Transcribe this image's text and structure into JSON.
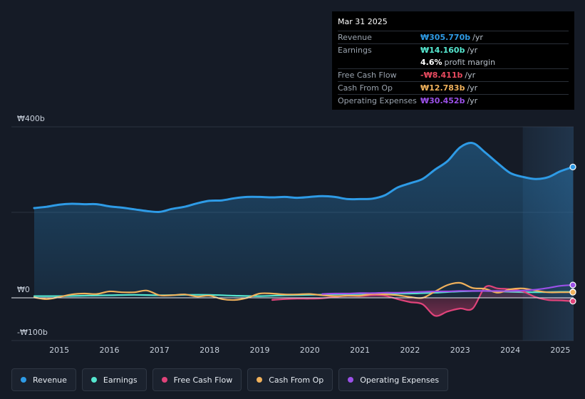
{
  "tooltip": {
    "date": "Mar 31 2025",
    "rows": [
      {
        "label": "Revenue",
        "value": "₩305.770b",
        "unit": "/yr",
        "color": "#2e9be6"
      },
      {
        "label": "Earnings",
        "value": "₩14.160b",
        "unit": "/yr",
        "color": "#55e6cf"
      },
      {
        "label": "",
        "value": "4.6%",
        "unit": "profit margin",
        "color": "#ffffff"
      },
      {
        "label": "Free Cash Flow",
        "value": "-₩8.411b",
        "unit": "/yr",
        "color": "#e84a5f"
      },
      {
        "label": "Cash From Op",
        "value": "₩12.783b",
        "unit": "/yr",
        "color": "#f0b15b"
      },
      {
        "label": "Operating Expenses",
        "value": "₩30.452b",
        "unit": "/yr",
        "color": "#9b50e8"
      }
    ]
  },
  "chart_data": {
    "type": "line",
    "y_unit_labels": {
      "top": "₩400b",
      "zero": "₩0",
      "bottom": "-₩100b"
    },
    "ylim": [
      -100,
      400
    ],
    "x_ticks": [
      "2015",
      "2016",
      "2017",
      "2018",
      "2019",
      "2020",
      "2021",
      "2022",
      "2023",
      "2024",
      "2025"
    ],
    "xlim": [
      2014.5,
      2025.25
    ],
    "forecast_shade_start": 2024.25,
    "series": [
      {
        "name": "Revenue",
        "color": "#2e9be6",
        "filled": true,
        "points": [
          [
            2014.5,
            210
          ],
          [
            2014.75,
            213
          ],
          [
            2015,
            218
          ],
          [
            2015.25,
            220
          ],
          [
            2015.5,
            219
          ],
          [
            2015.75,
            219
          ],
          [
            2016,
            214
          ],
          [
            2016.25,
            211
          ],
          [
            2016.5,
            207
          ],
          [
            2016.75,
            203
          ],
          [
            2017,
            201
          ],
          [
            2017.25,
            208
          ],
          [
            2017.5,
            213
          ],
          [
            2017.75,
            221
          ],
          [
            2018,
            227
          ],
          [
            2018.25,
            228
          ],
          [
            2018.5,
            233
          ],
          [
            2018.75,
            236
          ],
          [
            2019,
            236
          ],
          [
            2019.25,
            235
          ],
          [
            2019.5,
            236
          ],
          [
            2019.75,
            234
          ],
          [
            2020,
            236
          ],
          [
            2020.25,
            238
          ],
          [
            2020.5,
            236
          ],
          [
            2020.75,
            231
          ],
          [
            2021,
            231
          ],
          [
            2021.25,
            232
          ],
          [
            2021.5,
            240
          ],
          [
            2021.75,
            258
          ],
          [
            2022,
            268
          ],
          [
            2022.25,
            278
          ],
          [
            2022.5,
            300
          ],
          [
            2022.75,
            320
          ],
          [
            2023,
            352
          ],
          [
            2023.25,
            362
          ],
          [
            2023.5,
            340
          ],
          [
            2023.75,
            315
          ],
          [
            2024,
            292
          ],
          [
            2024.25,
            283
          ],
          [
            2024.5,
            278
          ],
          [
            2024.75,
            282
          ],
          [
            2025,
            296
          ],
          [
            2025.25,
            306
          ]
        ]
      },
      {
        "name": "Earnings",
        "color": "#55e6cf",
        "filled": false,
        "points": [
          [
            2014.5,
            4
          ],
          [
            2015,
            4
          ],
          [
            2015.5,
            5
          ],
          [
            2016,
            6
          ],
          [
            2016.5,
            7
          ],
          [
            2017,
            6
          ],
          [
            2017.5,
            7
          ],
          [
            2018,
            7
          ],
          [
            2018.5,
            5
          ],
          [
            2019,
            4
          ],
          [
            2019.5,
            6
          ],
          [
            2020,
            7
          ],
          [
            2020.5,
            8
          ],
          [
            2021,
            9
          ],
          [
            2021.5,
            10
          ],
          [
            2022,
            10
          ],
          [
            2022.5,
            12
          ],
          [
            2023,
            15
          ],
          [
            2023.5,
            16
          ],
          [
            2024,
            14
          ],
          [
            2024.5,
            13
          ],
          [
            2025,
            14
          ],
          [
            2025.25,
            14
          ]
        ]
      },
      {
        "name": "Free Cash Flow",
        "color": "#e0437a",
        "filled": false,
        "points": [
          [
            2019.25,
            -5
          ],
          [
            2019.5,
            -3
          ],
          [
            2019.75,
            -2
          ],
          [
            2020,
            -2
          ],
          [
            2020.25,
            -1
          ],
          [
            2020.5,
            2
          ],
          [
            2020.75,
            5
          ],
          [
            2021,
            4
          ],
          [
            2021.25,
            6
          ],
          [
            2021.5,
            5
          ],
          [
            2021.75,
            -3
          ],
          [
            2022,
            -10
          ],
          [
            2022.25,
            -15
          ],
          [
            2022.5,
            -42
          ],
          [
            2022.75,
            -32
          ],
          [
            2023,
            -25
          ],
          [
            2023.25,
            -25
          ],
          [
            2023.5,
            25
          ],
          [
            2023.75,
            22
          ],
          [
            2024,
            20
          ],
          [
            2024.25,
            15
          ],
          [
            2024.5,
            2
          ],
          [
            2024.75,
            -5
          ],
          [
            2025,
            -6
          ],
          [
            2025.25,
            -8
          ]
        ]
      },
      {
        "name": "Cash From Op",
        "color": "#f0b15b",
        "filled": false,
        "points": [
          [
            2014.5,
            1
          ],
          [
            2014.75,
            -3
          ],
          [
            2015,
            2
          ],
          [
            2015.25,
            8
          ],
          [
            2015.5,
            10
          ],
          [
            2015.75,
            9
          ],
          [
            2016,
            15
          ],
          [
            2016.25,
            13
          ],
          [
            2016.5,
            13
          ],
          [
            2016.75,
            17
          ],
          [
            2017,
            6
          ],
          [
            2017.25,
            6
          ],
          [
            2017.5,
            8
          ],
          [
            2017.75,
            3
          ],
          [
            2018,
            5
          ],
          [
            2018.25,
            -3
          ],
          [
            2018.5,
            -5
          ],
          [
            2018.75,
            0
          ],
          [
            2019,
            10
          ],
          [
            2019.25,
            10
          ],
          [
            2019.5,
            8
          ],
          [
            2019.75,
            8
          ],
          [
            2020,
            9
          ],
          [
            2020.25,
            6
          ],
          [
            2020.5,
            4
          ],
          [
            2020.75,
            5
          ],
          [
            2021,
            5
          ],
          [
            2021.25,
            9
          ],
          [
            2021.5,
            8
          ],
          [
            2021.75,
            6
          ],
          [
            2022,
            2
          ],
          [
            2022.25,
            0
          ],
          [
            2022.5,
            15
          ],
          [
            2022.75,
            30
          ],
          [
            2023,
            35
          ],
          [
            2023.25,
            23
          ],
          [
            2023.5,
            21
          ],
          [
            2023.75,
            12
          ],
          [
            2024,
            20
          ],
          [
            2024.25,
            22
          ],
          [
            2024.5,
            17
          ],
          [
            2024.75,
            13
          ],
          [
            2025,
            13
          ],
          [
            2025.25,
            13
          ]
        ]
      },
      {
        "name": "Operating Expenses",
        "color": "#9b50e8",
        "filled": false,
        "points": [
          [
            2020.25,
            9
          ],
          [
            2020.5,
            10
          ],
          [
            2020.75,
            10
          ],
          [
            2021,
            11
          ],
          [
            2021.25,
            11
          ],
          [
            2021.5,
            12
          ],
          [
            2021.75,
            12
          ],
          [
            2022,
            13
          ],
          [
            2022.25,
            14
          ],
          [
            2022.5,
            15
          ],
          [
            2022.75,
            15
          ],
          [
            2023,
            16
          ],
          [
            2023.25,
            16
          ],
          [
            2023.5,
            16
          ],
          [
            2023.75,
            16
          ],
          [
            2024,
            16
          ],
          [
            2024.25,
            17
          ],
          [
            2024.5,
            19
          ],
          [
            2024.75,
            23
          ],
          [
            2025,
            28
          ],
          [
            2025.25,
            30
          ]
        ]
      }
    ]
  },
  "legend": [
    {
      "label": "Revenue",
      "color": "#2e9be6"
    },
    {
      "label": "Earnings",
      "color": "#55e6cf"
    },
    {
      "label": "Free Cash Flow",
      "color": "#e0437a"
    },
    {
      "label": "Cash From Op",
      "color": "#f0b15b"
    },
    {
      "label": "Operating Expenses",
      "color": "#9b50e8"
    }
  ]
}
